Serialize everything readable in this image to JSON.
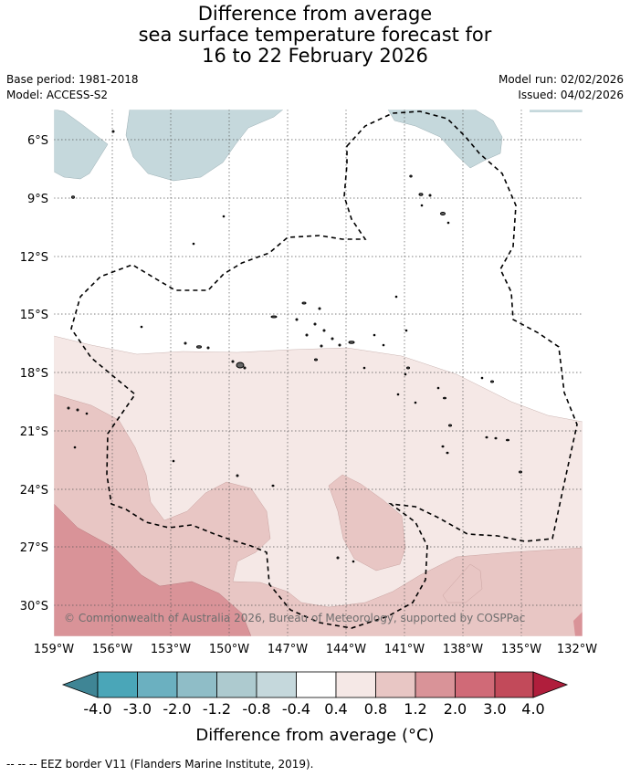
{
  "header": {
    "title_lines": [
      "Difference from average",
      "sea surface temperature forecast for",
      "16 to 22 February 2026"
    ],
    "base_period": "Base period: 1981-2018",
    "model": "Model: ACCESS-S2",
    "model_run": "Model run: 02/02/2026",
    "issued": "Issued: 04/02/2026"
  },
  "map": {
    "lat_ticks": [
      "6°S",
      "9°S",
      "12°S",
      "15°S",
      "18°S",
      "21°S",
      "24°S",
      "27°S",
      "30°S"
    ],
    "lon_ticks": [
      "159°W",
      "156°W",
      "153°W",
      "150°W",
      "147°W",
      "144°W",
      "141°W",
      "138°W",
      "135°W",
      "132°W"
    ],
    "copyright": "© Commonwealth of Australia 2026, Bureau of Meteorology, supported by COSPPac",
    "colors": {
      "cool_light": "#c5d8dc",
      "neutral": "#ffffff",
      "warm_1": "#f5e8e6",
      "warm_2": "#e8c6c4",
      "warm_3": "#d99398"
    }
  },
  "colorbar": {
    "colors": [
      "#3f8595",
      "#4aa6b8",
      "#6bb0c0",
      "#8fbdc7",
      "#adcacf",
      "#c5d8dc",
      "#ffffff",
      "#f5e8e6",
      "#e8c6c4",
      "#d99398",
      "#d06a77",
      "#c24a5a",
      "#b01e3c"
    ],
    "labels": [
      "-4.0",
      "-3.0",
      "-2.0",
      "-1.2",
      "-0.8",
      "-0.4",
      "0.4",
      "0.8",
      "1.2",
      "2.0",
      "3.0",
      "4.0"
    ],
    "title": "Difference from average (°C)"
  },
  "footer": {
    "legend": "--  --  -- EEZ border V11 (Flanders Marine Institute, 2019)."
  }
}
